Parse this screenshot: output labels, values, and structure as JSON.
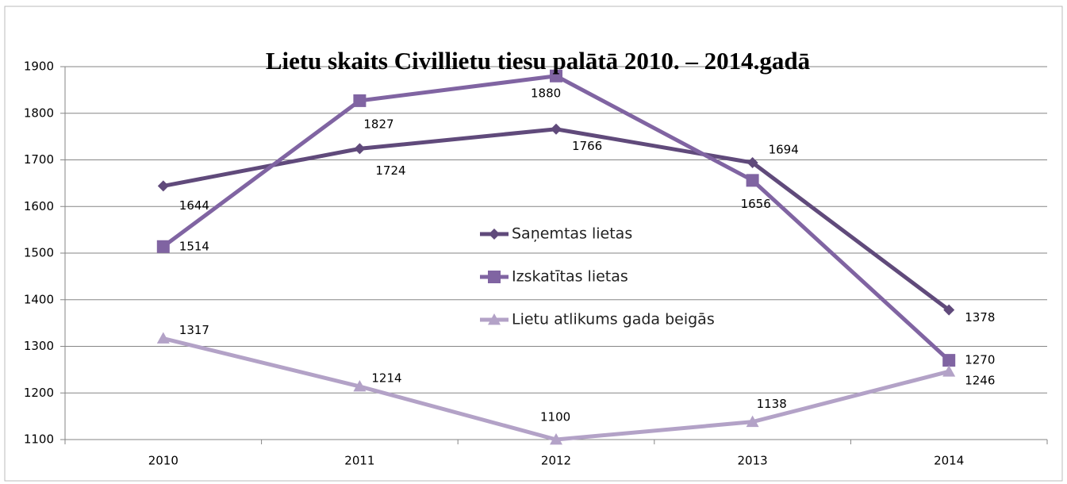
{
  "chart_data": {
    "type": "line",
    "title": "Lietu skaits Civillietu tiesu palātā 2010. – 2014.gadā",
    "categories": [
      "2010",
      "2011",
      "2012",
      "2013",
      "2014"
    ],
    "series": [
      {
        "name": "Saņemtas lietas",
        "color": "#604a7b",
        "marker": "diamond",
        "values": [
          1644,
          1724,
          1766,
          1694,
          1378
        ]
      },
      {
        "name": "Izskatītas lietas",
        "color": "#8064a2",
        "marker": "square",
        "values": [
          1514,
          1827,
          1880,
          1656,
          1270
        ]
      },
      {
        "name": "Lietu atlikums gada beigās",
        "color": "#b3a2c7",
        "marker": "triangle",
        "values": [
          1317,
          1214,
          1100,
          1138,
          1246
        ]
      }
    ],
    "ylim": [
      1100,
      1900
    ],
    "yticks": [
      1100,
      1200,
      1300,
      1400,
      1500,
      1600,
      1700,
      1800,
      1900
    ],
    "grid": true,
    "legend": "center"
  }
}
